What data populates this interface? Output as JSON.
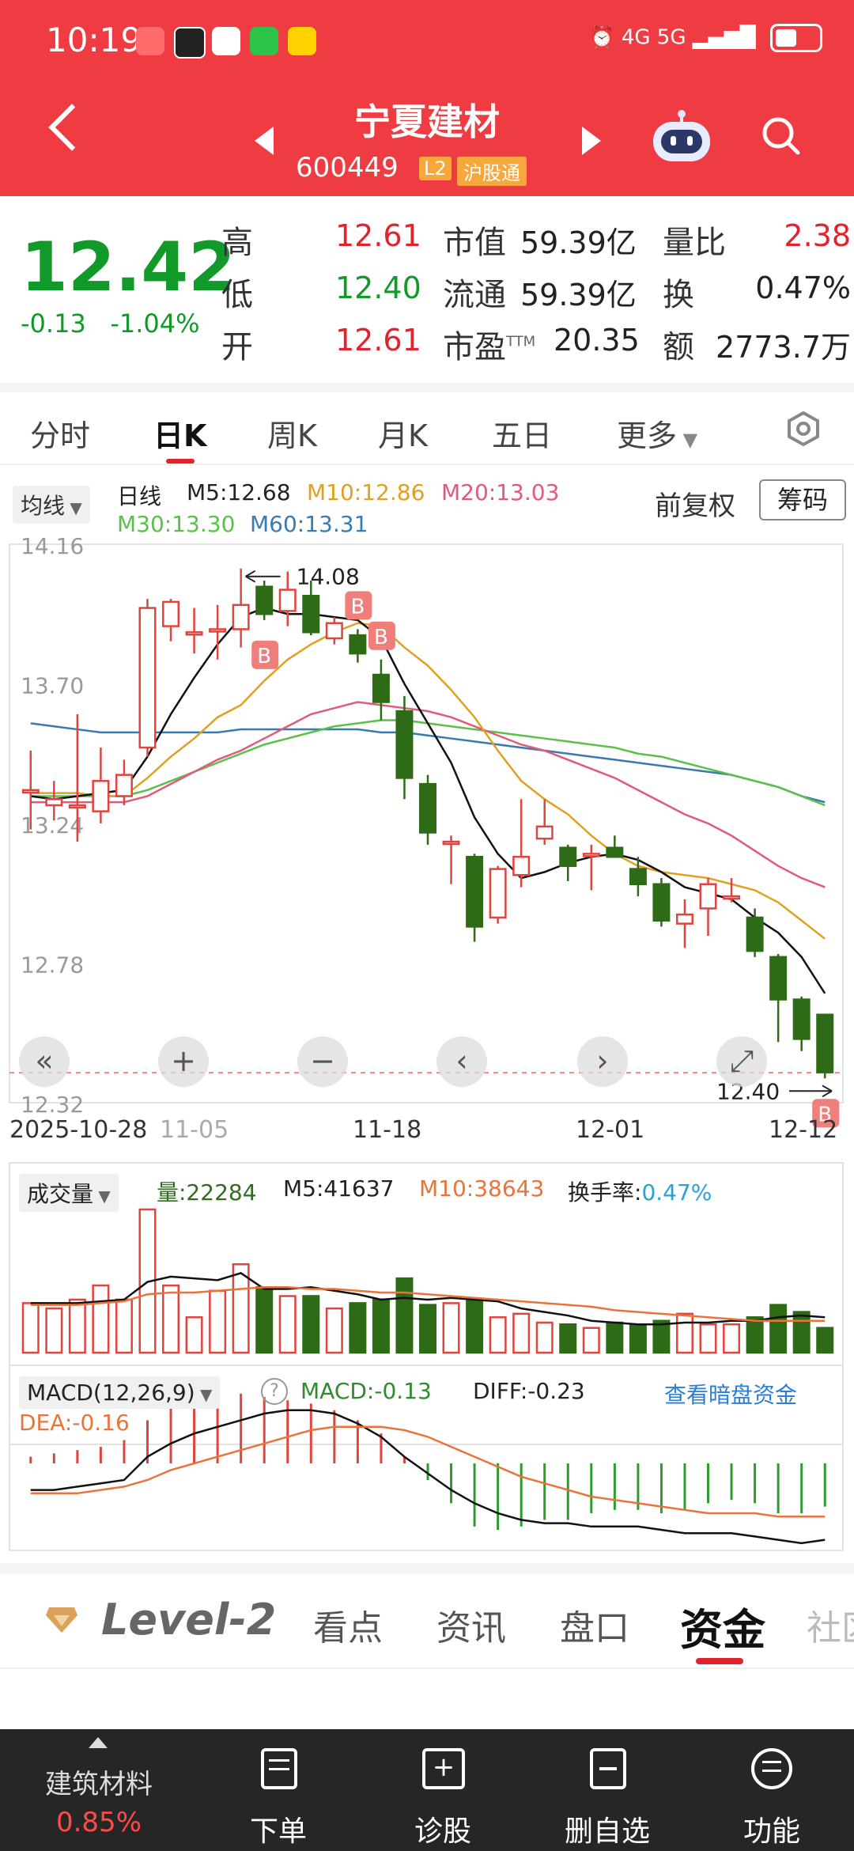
{
  "status_bar": {
    "time": "10:19",
    "app_icons": [
      "game-icon",
      "qq-icon",
      "lottery-icon",
      "wechat-icon",
      "meituan-icon"
    ],
    "network": "4G  5G"
  },
  "header": {
    "stock_name": "宁夏建材",
    "stock_code": "600449",
    "tag_l2": "L2",
    "tag_market": "沪股通"
  },
  "quote": {
    "price": "12.42",
    "change": "-0.13",
    "change_pct": "-1.04%",
    "high_label": "高",
    "high": "12.61",
    "low_label": "低",
    "low": "12.40",
    "open_label": "开",
    "open": "12.61",
    "mktcap_label": "市值",
    "mktcap": "59.39亿",
    "float_label": "流通",
    "float": "59.39亿",
    "pe_label": "市盈",
    "pe_sup": "TTM",
    "pe": "20.35",
    "vol_ratio_label": "量比",
    "vol_ratio": "2.38",
    "turnover_label": "换",
    "turnover": "0.47%",
    "amount_label": "额",
    "amount": "2773.7万"
  },
  "tabs": [
    "分时",
    "日K",
    "周K",
    "月K",
    "五日",
    "更多"
  ],
  "kline_legend": {
    "ma_dropdown": "均线",
    "period": "日线",
    "m5": "M5:12.68",
    "m10": "M10:12.86",
    "m20": "M20:13.03",
    "m30": "M30:13.30",
    "m60": "M60:13.31",
    "adjust": "前复权",
    "chips_button": "筹码"
  },
  "kline_axis": {
    "y_ticks": [
      "14.16",
      "13.70",
      "13.24",
      "12.78",
      "12.32"
    ],
    "x_ticks": [
      "2025-10-28",
      "11-05",
      "11-18",
      "12-01",
      "12-12"
    ],
    "max_label": "14.08",
    "min_label": "12.40"
  },
  "volume_legend": {
    "title": "成交量",
    "vol": "量:22284",
    "m5": "M5:41637",
    "m10": "M10:38643",
    "turnover_label": "换手率:",
    "turnover": "0.47%"
  },
  "macd_legend": {
    "title": "MACD(12,26,9)",
    "help": "?",
    "macd": "MACD:-0.13",
    "diff": "DIFF:-0.23",
    "dea": "DEA:-0.16",
    "link": "查看暗盘资金"
  },
  "bottom_tabs": {
    "brand": "Level-2",
    "items": [
      "看点",
      "资讯",
      "盘口",
      "资金",
      "社区"
    ]
  },
  "bottom_nav": {
    "sector": "建筑材料",
    "sector_pct": "0.85%",
    "items": [
      "下单",
      "诊股",
      "删自选",
      "功能"
    ]
  },
  "chart_data": {
    "type": "candlestick",
    "title": "",
    "ylim": [
      12.32,
      14.16
    ],
    "x_range": [
      "2025-10-28",
      "2025-12-12"
    ],
    "candles": [
      {
        "o": 13.35,
        "c": 13.35,
        "h": 13.48,
        "l": 13.22
      },
      {
        "o": 13.3,
        "c": 13.32,
        "h": 13.38,
        "l": 13.25
      },
      {
        "o": 13.3,
        "c": 13.3,
        "h": 13.6,
        "l": 13.18
      },
      {
        "o": 13.28,
        "c": 13.38,
        "h": 13.49,
        "l": 13.24
      },
      {
        "o": 13.33,
        "c": 13.4,
        "h": 13.45,
        "l": 13.3
      },
      {
        "o": 13.49,
        "c": 13.95,
        "h": 13.98,
        "l": 13.46
      },
      {
        "o": 13.89,
        "c": 13.97,
        "h": 13.98,
        "l": 13.84
      },
      {
        "o": 13.87,
        "c": 13.87,
        "h": 13.95,
        "l": 13.8
      },
      {
        "o": 13.88,
        "c": 13.88,
        "h": 13.96,
        "l": 13.78
      },
      {
        "o": 13.88,
        "c": 13.96,
        "h": 14.08,
        "l": 13.82
      },
      {
        "o": 14.02,
        "c": 13.93,
        "h": 14.04,
        "l": 13.91
      },
      {
        "o": 13.94,
        "c": 14.01,
        "h": 14.07,
        "l": 13.89
      },
      {
        "o": 13.99,
        "c": 13.87,
        "h": 14.04,
        "l": 13.86
      },
      {
        "o": 13.85,
        "c": 13.9,
        "h": 13.92,
        "l": 13.83
      },
      {
        "o": 13.86,
        "c": 13.8,
        "h": 13.88,
        "l": 13.77
      },
      {
        "o": 13.73,
        "c": 13.64,
        "h": 13.78,
        "l": 13.58
      },
      {
        "o": 13.61,
        "c": 13.39,
        "h": 13.66,
        "l": 13.32
      },
      {
        "o": 13.37,
        "c": 13.21,
        "h": 13.4,
        "l": 13.17
      },
      {
        "o": 13.18,
        "c": 13.18,
        "h": 13.2,
        "l": 13.04
      },
      {
        "o": 13.13,
        "c": 12.9,
        "h": 13.14,
        "l": 12.85
      },
      {
        "o": 12.93,
        "c": 13.09,
        "h": 13.1,
        "l": 12.91
      },
      {
        "o": 13.07,
        "c": 13.13,
        "h": 13.32,
        "l": 13.03
      },
      {
        "o": 13.19,
        "c": 13.23,
        "h": 13.32,
        "l": 13.17
      },
      {
        "o": 13.16,
        "c": 13.1,
        "h": 13.17,
        "l": 13.05
      },
      {
        "o": 13.14,
        "c": 13.14,
        "h": 13.17,
        "l": 13.02
      },
      {
        "o": 13.16,
        "c": 13.13,
        "h": 13.2,
        "l": 13.13
      },
      {
        "o": 13.09,
        "c": 13.04,
        "h": 13.13,
        "l": 13.0
      },
      {
        "o": 13.04,
        "c": 12.92,
        "h": 13.06,
        "l": 12.9
      },
      {
        "o": 12.91,
        "c": 12.94,
        "h": 12.99,
        "l": 12.83
      },
      {
        "o": 12.96,
        "c": 13.04,
        "h": 13.06,
        "l": 12.87
      },
      {
        "o": 13.0,
        "c": 13.0,
        "h": 13.06,
        "l": 12.98
      },
      {
        "o": 12.93,
        "c": 12.82,
        "h": 12.96,
        "l": 12.8
      },
      {
        "o": 12.8,
        "c": 12.66,
        "h": 12.81,
        "l": 12.52
      },
      {
        "o": 12.66,
        "c": 12.53,
        "h": 12.67,
        "l": 12.49
      },
      {
        "o": 12.61,
        "c": 12.42,
        "h": 12.61,
        "l": 12.4
      }
    ],
    "ma5": [
      13.33,
      13.32,
      13.33,
      13.34,
      13.35,
      13.46,
      13.6,
      13.72,
      13.83,
      13.92,
      13.95,
      13.93,
      13.93,
      13.92,
      13.91,
      13.85,
      13.7,
      13.57,
      13.44,
      13.26,
      13.14,
      13.06,
      13.08,
      13.11,
      13.13,
      13.14,
      13.12,
      13.08,
      13.03,
      13.01,
      12.99,
      12.93,
      12.88,
      12.8,
      12.68
    ],
    "ma10": [
      13.34,
      13.34,
      13.34,
      13.33,
      13.33,
      13.39,
      13.46,
      13.52,
      13.59,
      13.63,
      13.71,
      13.78,
      13.83,
      13.87,
      13.9,
      13.89,
      13.82,
      13.76,
      13.68,
      13.59,
      13.48,
      13.38,
      13.32,
      13.27,
      13.2,
      13.14,
      13.1,
      13.08,
      13.07,
      13.06,
      13.04,
      13.02,
      12.98,
      12.92,
      12.86
    ],
    "ma20": [
      13.31,
      13.31,
      13.31,
      13.31,
      13.31,
      13.33,
      13.37,
      13.41,
      13.45,
      13.48,
      13.52,
      13.56,
      13.6,
      13.62,
      13.64,
      13.63,
      13.62,
      13.61,
      13.59,
      13.56,
      13.53,
      13.5,
      13.48,
      13.45,
      13.42,
      13.39,
      13.35,
      13.31,
      13.27,
      13.24,
      13.2,
      13.15,
      13.1,
      13.06,
      13.03
    ],
    "ma30": [
      13.33,
      13.33,
      13.33,
      13.33,
      13.33,
      13.35,
      13.38,
      13.41,
      13.44,
      13.47,
      13.5,
      13.52,
      13.54,
      13.56,
      13.57,
      13.58,
      13.58,
      13.57,
      13.56,
      13.55,
      13.54,
      13.53,
      13.52,
      13.51,
      13.5,
      13.49,
      13.47,
      13.46,
      13.44,
      13.42,
      13.4,
      13.38,
      13.36,
      13.33,
      13.3
    ],
    "ma60": [
      13.57,
      13.56,
      13.55,
      13.54,
      13.54,
      13.54,
      13.54,
      13.54,
      13.54,
      13.55,
      13.55,
      13.55,
      13.55,
      13.55,
      13.55,
      13.54,
      13.54,
      13.53,
      13.52,
      13.51,
      13.5,
      13.49,
      13.48,
      13.47,
      13.46,
      13.45,
      13.44,
      13.43,
      13.42,
      13.41,
      13.4,
      13.38,
      13.36,
      13.33,
      13.31
    ],
    "buy_signal_indices": [
      10,
      14,
      15,
      34
    ],
    "volume": [
      0.28,
      0.25,
      0.3,
      0.38,
      0.3,
      0.81,
      0.38,
      0.2,
      0.35,
      0.5,
      0.37,
      0.32,
      0.32,
      0.25,
      0.28,
      0.3,
      0.42,
      0.27,
      0.28,
      0.3,
      0.2,
      0.22,
      0.17,
      0.16,
      0.14,
      0.17,
      0.16,
      0.18,
      0.22,
      0.16,
      0.16,
      0.2,
      0.27,
      0.23,
      0.14
    ],
    "vol_ma5": [
      0.28,
      0.28,
      0.28,
      0.29,
      0.3,
      0.4,
      0.43,
      0.42,
      0.41,
      0.45,
      0.36,
      0.36,
      0.37,
      0.35,
      0.33,
      0.3,
      0.31,
      0.3,
      0.31,
      0.3,
      0.29,
      0.25,
      0.23,
      0.21,
      0.18,
      0.17,
      0.16,
      0.16,
      0.17,
      0.17,
      0.18,
      0.18,
      0.2,
      0.21,
      0.2
    ],
    "vol_ma10": [
      0.27,
      0.27,
      0.27,
      0.28,
      0.29,
      0.33,
      0.34,
      0.34,
      0.35,
      0.36,
      0.37,
      0.37,
      0.36,
      0.36,
      0.35,
      0.34,
      0.34,
      0.33,
      0.32,
      0.31,
      0.3,
      0.29,
      0.28,
      0.27,
      0.26,
      0.24,
      0.23,
      0.22,
      0.21,
      0.2,
      0.19,
      0.18,
      0.18,
      0.18,
      0.18
    ],
    "macd_hist": [
      0.02,
      0.03,
      0.04,
      0.05,
      0.07,
      0.13,
      0.17,
      0.18,
      0.19,
      0.21,
      0.2,
      0.19,
      0.18,
      0.16,
      0.13,
      0.09,
      0.02,
      -0.05,
      -0.12,
      -0.19,
      -0.2,
      -0.19,
      -0.17,
      -0.17,
      -0.15,
      -0.14,
      -0.14,
      -0.15,
      -0.14,
      -0.12,
      -0.11,
      -0.12,
      -0.15,
      -0.15,
      -0.13
    ],
    "diff": [
      -0.08,
      -0.08,
      -0.07,
      -0.06,
      -0.05,
      0.02,
      0.06,
      0.09,
      0.11,
      0.13,
      0.15,
      0.16,
      0.16,
      0.15,
      0.12,
      0.08,
      0.02,
      -0.03,
      -0.08,
      -0.12,
      -0.15,
      -0.17,
      -0.18,
      -0.18,
      -0.19,
      -0.19,
      -0.19,
      -0.2,
      -0.21,
      -0.21,
      -0.21,
      -0.22,
      -0.23,
      -0.24,
      -0.23
    ],
    "dea": [
      -0.09,
      -0.09,
      -0.09,
      -0.08,
      -0.07,
      -0.05,
      -0.02,
      0.0,
      0.02,
      0.04,
      0.06,
      0.08,
      0.1,
      0.11,
      0.11,
      0.11,
      0.1,
      0.08,
      0.05,
      0.02,
      -0.01,
      -0.04,
      -0.06,
      -0.08,
      -0.1,
      -0.11,
      -0.12,
      -0.13,
      -0.14,
      -0.15,
      -0.15,
      -0.15,
      -0.16,
      -0.16,
      -0.16
    ]
  }
}
